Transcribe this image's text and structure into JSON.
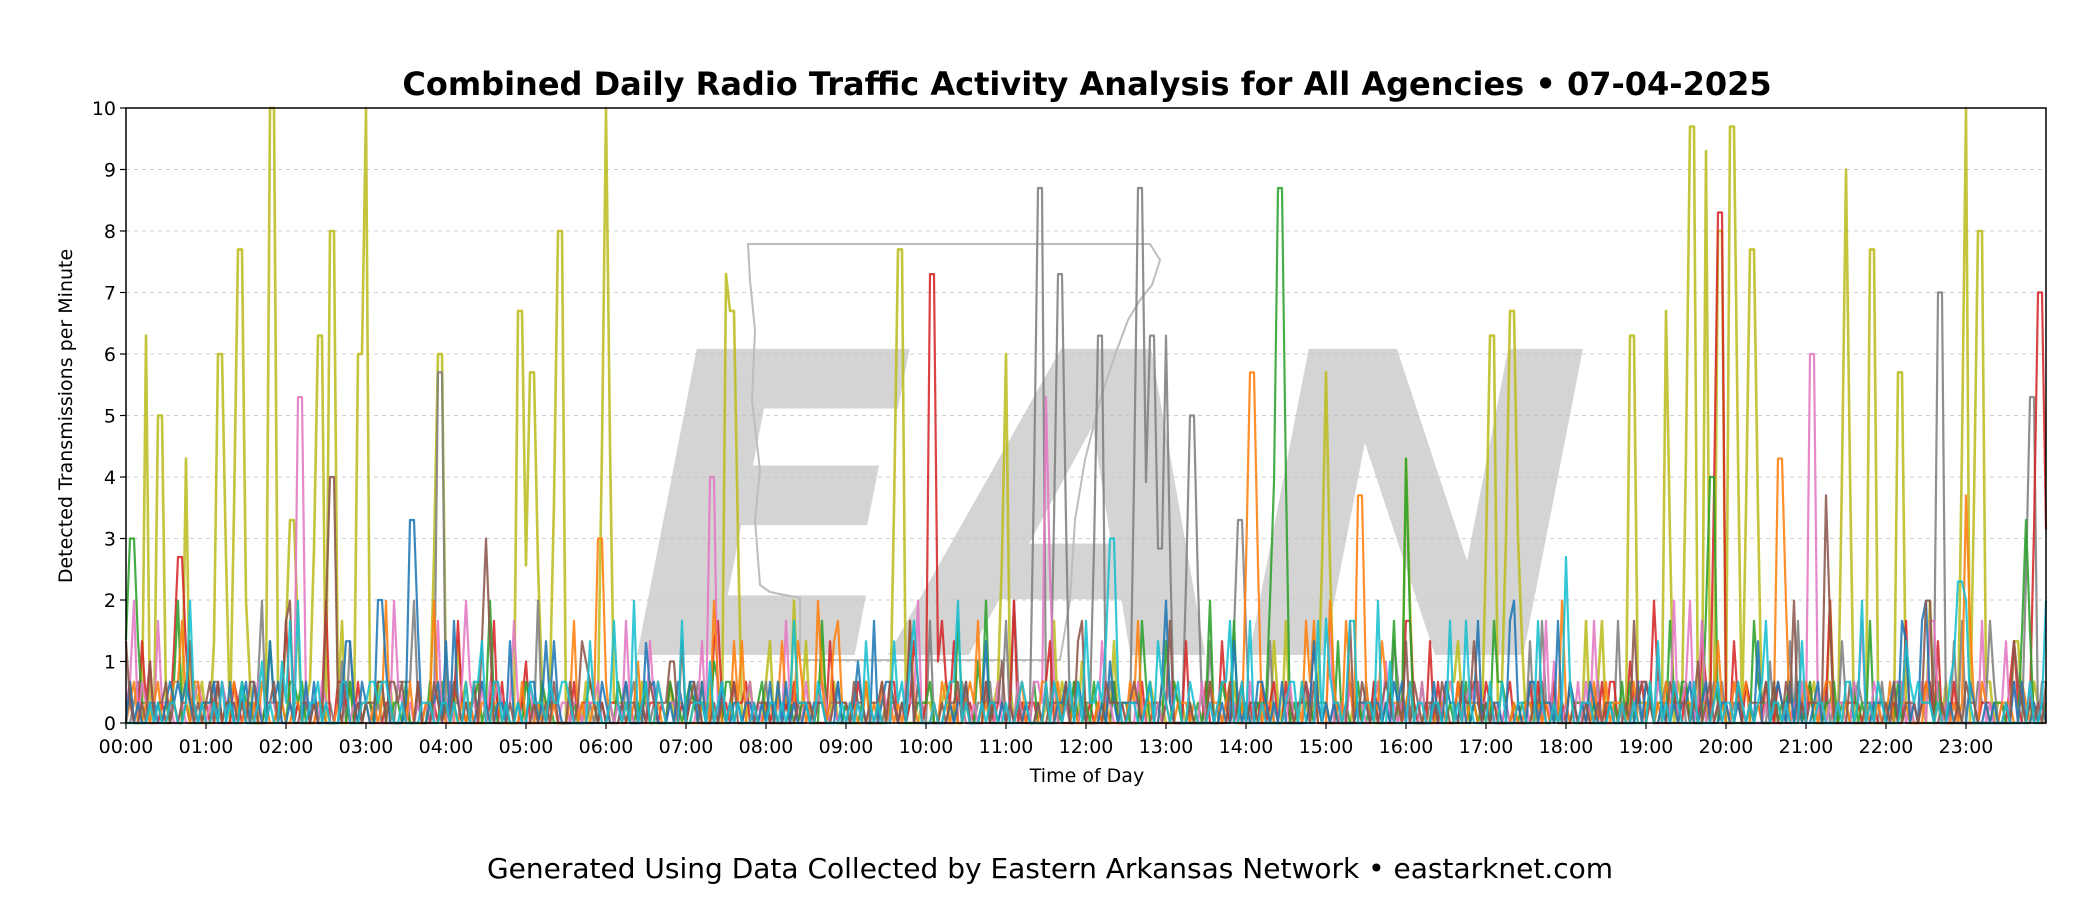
{
  "chart_data": {
    "type": "line",
    "title": "Combined Daily Radio Traffic Activity Analysis for All Agencies • 07-04-2025",
    "xlabel": "Time of Day",
    "ylabel": "Detected Transmissions per Minute",
    "xlim": [
      "00:00",
      "24:00"
    ],
    "ylim": [
      0,
      10
    ],
    "x_ticks": [
      "00:00",
      "01:00",
      "02:00",
      "03:00",
      "04:00",
      "05:00",
      "06:00",
      "07:00",
      "08:00",
      "09:00",
      "10:00",
      "11:00",
      "12:00",
      "13:00",
      "14:00",
      "15:00",
      "16:00",
      "17:00",
      "18:00",
      "19:00",
      "20:00",
      "21:00",
      "22:00",
      "23:00"
    ],
    "y_ticks": [
      0,
      1,
      2,
      3,
      4,
      5,
      6,
      7,
      8,
      9,
      10
    ],
    "grid": "horizontal dashed",
    "watermark": "EAN",
    "series": [
      {
        "color": "#bcbd22",
        "points": [
          [
            "00:15",
            6.3
          ],
          [
            "00:25",
            5.0
          ],
          [
            "00:45",
            4.3
          ],
          [
            "01:10",
            6.0
          ],
          [
            "01:25",
            7.7
          ],
          [
            "01:50",
            10.0
          ],
          [
            "02:05",
            3.3
          ],
          [
            "02:25",
            6.3
          ],
          [
            "02:35",
            8.0
          ],
          [
            "02:55",
            6.0
          ],
          [
            "03:00",
            10.0
          ],
          [
            "03:55",
            6.0
          ],
          [
            "04:55",
            6.7
          ],
          [
            "05:05",
            5.7
          ],
          [
            "05:25",
            8.0
          ],
          [
            "06:00",
            10.0
          ],
          [
            "07:30",
            7.3
          ],
          [
            "07:35",
            6.7
          ],
          [
            "09:40",
            7.7
          ],
          [
            "11:00",
            6.0
          ],
          [
            "15:00",
            5.7
          ],
          [
            "16:00",
            4.3
          ],
          [
            "17:05",
            6.3
          ],
          [
            "17:20",
            6.7
          ],
          [
            "18:50",
            6.3
          ],
          [
            "19:15",
            6.7
          ],
          [
            "19:35",
            9.7
          ],
          [
            "19:45",
            9.3
          ],
          [
            "19:55",
            8.0
          ],
          [
            "20:05",
            9.7
          ],
          [
            "20:20",
            7.7
          ],
          [
            "21:30",
            9.0
          ],
          [
            "21:50",
            7.7
          ],
          [
            "22:10",
            5.7
          ],
          [
            "23:00",
            10.0
          ],
          [
            "23:10",
            8.0
          ]
        ]
      },
      {
        "color": "#7f7f7f",
        "points": [
          [
            "03:55",
            5.7
          ],
          [
            "11:25",
            8.7
          ],
          [
            "11:40",
            7.3
          ],
          [
            "12:10",
            6.3
          ],
          [
            "12:40",
            8.7
          ],
          [
            "12:50",
            6.3
          ],
          [
            "13:00",
            6.3
          ],
          [
            "13:20",
            5.0
          ],
          [
            "13:55",
            3.3
          ],
          [
            "22:40",
            7.0
          ],
          [
            "23:50",
            5.3
          ]
        ]
      },
      {
        "color": "#d62728",
        "points": [
          [
            "00:40",
            2.7
          ],
          [
            "10:05",
            7.3
          ],
          [
            "19:55",
            8.3
          ],
          [
            "23:55",
            7.0
          ]
        ]
      },
      {
        "color": "#2ca02c",
        "points": [
          [
            "00:05",
            3.0
          ],
          [
            "14:25",
            8.7
          ],
          [
            "16:00",
            4.3
          ],
          [
            "19:50",
            4.0
          ],
          [
            "23:45",
            3.3
          ]
        ]
      },
      {
        "color": "#e377c2",
        "points": [
          [
            "02:10",
            5.3
          ],
          [
            "07:20",
            4.0
          ],
          [
            "11:30",
            5.3
          ],
          [
            "21:05",
            6.0
          ]
        ]
      },
      {
        "color": "#ff7f0e",
        "points": [
          [
            "05:55",
            3.0
          ],
          [
            "14:05",
            5.7
          ],
          [
            "15:25",
            3.7
          ],
          [
            "20:40",
            4.3
          ],
          [
            "23:00",
            3.7
          ]
        ]
      },
      {
        "color": "#1f77b4",
        "points": [
          [
            "03:35",
            3.3
          ],
          [
            "03:10",
            2.0
          ],
          [
            "06:30",
            1.3
          ]
        ]
      },
      {
        "color": "#8c564b",
        "points": [
          [
            "04:30",
            3.0
          ],
          [
            "02:35",
            4.0
          ],
          [
            "21:15",
            3.7
          ]
        ]
      },
      {
        "color": "#17becf",
        "points": [
          [
            "18:00",
            2.7
          ],
          [
            "12:20",
            3.0
          ],
          [
            "15:00",
            1.7
          ],
          [
            "22:55",
            2.3
          ]
        ]
      }
    ]
  },
  "footer": "Generated Using Data Collected by Eastern Arkansas Network • eastarknet.com"
}
